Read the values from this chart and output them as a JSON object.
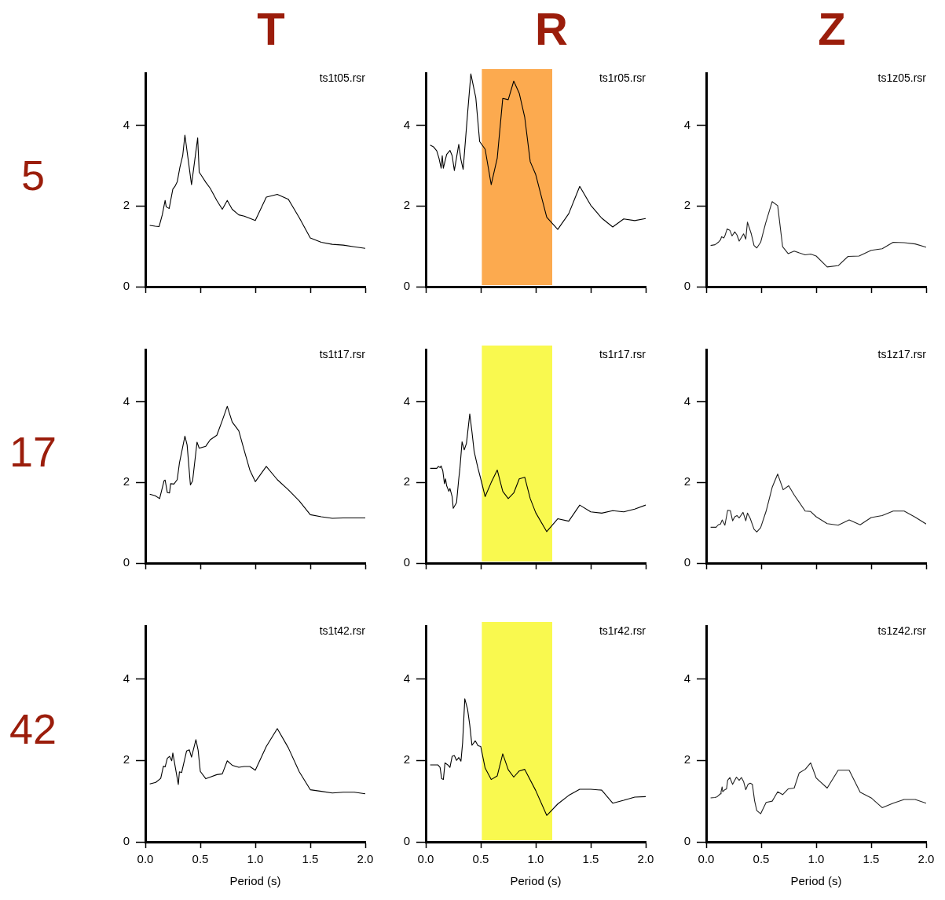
{
  "chart_data": [
    {
      "type": "line",
      "title": "T",
      "ylabel": "5",
      "annotations": [
        "ts1t05.rsr"
      ],
      "marker": "none",
      "tick_labels": "y",
      "xlim": [
        0,
        2
      ],
      "xticks": [
        {
          "value": 0,
          "label": null
        },
        {
          "value": 0.5,
          "label": null
        },
        {
          "value": 1,
          "label": null
        },
        {
          "value": 1.5,
          "label": null
        },
        {
          "value": 2,
          "label": null
        }
      ],
      "ylim": [
        0,
        5.3
      ],
      "yticks": [
        0,
        2,
        4
      ],
      "x": [
        0.04,
        0.09,
        0.125,
        0.154,
        0.18,
        0.19,
        0.217,
        0.25,
        0.27,
        0.29,
        0.315,
        0.34,
        0.36,
        0.42,
        0.43,
        0.476,
        0.49,
        0.55,
        0.59,
        0.65,
        0.7,
        0.745,
        0.79,
        0.85,
        0.9,
        1.0,
        1.1,
        1.2,
        1.3,
        1.4,
        1.5,
        1.6,
        1.7,
        1.8,
        1.9,
        2.0
      ],
      "series": [
        {
          "color": "#000000",
          "values": [
            1.52,
            1.5,
            1.49,
            1.78,
            2.14,
            1.98,
            1.94,
            2.42,
            2.49,
            2.6,
            2.97,
            3.25,
            3.76,
            2.53,
            2.73,
            3.69,
            2.84,
            2.59,
            2.44,
            2.14,
            1.92,
            2.14,
            1.92,
            1.78,
            1.75,
            1.64,
            2.22,
            2.29,
            2.17,
            1.71,
            1.21,
            1.1,
            1.05,
            1.03,
            0.99,
            0.95
          ]
        }
      ]
    },
    {
      "type": "line",
      "title": "R",
      "annotations": [
        "ts1r05.rsr"
      ],
      "marker": "none",
      "tick_labels": "y",
      "xlim": [
        0,
        2
      ],
      "xticks": [
        {
          "value": 0,
          "label": null
        },
        {
          "value": 0.5,
          "label": null
        },
        {
          "value": 1,
          "label": null
        },
        {
          "value": 1.5,
          "label": null
        },
        {
          "value": 2,
          "label": null
        }
      ],
      "ylim": [
        0,
        5.3
      ],
      "yticks": [
        0,
        2,
        4
      ],
      "bands": [
        {
          "axis": "x",
          "from": 0.51,
          "to": 1.15,
          "color": "#fcaa4f"
        }
      ],
      "x": [
        0.04,
        0.07,
        0.1,
        0.12,
        0.14,
        0.15,
        0.16,
        0.19,
        0.22,
        0.24,
        0.26,
        0.3,
        0.32,
        0.34,
        0.38,
        0.41,
        0.455,
        0.49,
        0.54,
        0.595,
        0.65,
        0.7,
        0.75,
        0.8,
        0.85,
        0.9,
        0.95,
        1.0,
        1.1,
        1.2,
        1.3,
        1.4,
        1.5,
        1.6,
        1.7,
        1.8,
        1.9,
        2.0
      ],
      "series": [
        {
          "color": "#000000",
          "values": [
            3.51,
            3.47,
            3.37,
            3.19,
            2.94,
            3.25,
            2.94,
            3.28,
            3.38,
            3.25,
            2.88,
            3.53,
            3.15,
            2.91,
            4.29,
            5.28,
            4.69,
            3.6,
            3.41,
            2.53,
            3.19,
            4.67,
            4.64,
            5.1,
            4.8,
            4.2,
            3.1,
            2.78,
            1.72,
            1.42,
            1.81,
            2.49,
            2.02,
            1.7,
            1.48,
            1.68,
            1.64,
            1.69
          ]
        }
      ]
    },
    {
      "type": "line",
      "title": "Z",
      "annotations": [
        "ts1z05.rsr"
      ],
      "marker": "none",
      "tick_labels": "y",
      "xlim": [
        0,
        2
      ],
      "xticks": [
        {
          "value": 0,
          "label": null
        },
        {
          "value": 0.5,
          "label": null
        },
        {
          "value": 1,
          "label": null
        },
        {
          "value": 1.5,
          "label": null
        },
        {
          "value": 2,
          "label": null
        }
      ],
      "ylim": [
        0,
        5.3
      ],
      "yticks": [
        0,
        2,
        4
      ],
      "x": [
        0.04,
        0.08,
        0.11,
        0.13,
        0.14,
        0.16,
        0.17,
        0.19,
        0.215,
        0.235,
        0.26,
        0.28,
        0.3,
        0.34,
        0.36,
        0.375,
        0.41,
        0.435,
        0.46,
        0.495,
        0.54,
        0.6,
        0.65,
        0.695,
        0.745,
        0.8,
        0.9,
        0.95,
        1.0,
        1.1,
        1.2,
        1.29,
        1.39,
        1.5,
        1.6,
        1.7,
        1.8,
        1.9,
        2.0
      ],
      "series": [
        {
          "color": "#222222",
          "values": [
            1.02,
            1.04,
            1.1,
            1.16,
            1.24,
            1.21,
            1.26,
            1.43,
            1.4,
            1.26,
            1.36,
            1.28,
            1.13,
            1.31,
            1.18,
            1.6,
            1.31,
            1.02,
            0.96,
            1.1,
            1.57,
            2.11,
            2.01,
            0.99,
            0.82,
            0.88,
            0.79,
            0.81,
            0.76,
            0.49,
            0.52,
            0.75,
            0.76,
            0.9,
            0.94,
            1.1,
            1.09,
            1.06,
            0.98
          ]
        }
      ]
    },
    {
      "type": "line",
      "ylabel": "17",
      "annotations": [
        "ts1t17.rsr"
      ],
      "marker": "none",
      "tick_labels": "y",
      "xlim": [
        0,
        2
      ],
      "xticks": [
        {
          "value": 0,
          "label": null
        },
        {
          "value": 0.5,
          "label": null
        },
        {
          "value": 1,
          "label": null
        },
        {
          "value": 1.5,
          "label": null
        },
        {
          "value": 2,
          "label": null
        }
      ],
      "ylim": [
        0,
        5.3
      ],
      "yticks": [
        0,
        2,
        4
      ],
      "x": [
        0.04,
        0.09,
        0.13,
        0.15,
        0.17,
        0.18,
        0.2,
        0.22,
        0.23,
        0.26,
        0.29,
        0.31,
        0.36,
        0.38,
        0.41,
        0.43,
        0.47,
        0.49,
        0.55,
        0.59,
        0.65,
        0.7,
        0.745,
        0.79,
        0.85,
        0.9,
        0.95,
        1.0,
        1.1,
        1.2,
        1.3,
        1.4,
        1.5,
        1.6,
        1.7,
        1.8,
        1.9,
        2.0
      ],
      "series": [
        {
          "color": "#000000",
          "values": [
            1.71,
            1.67,
            1.6,
            1.82,
            2.04,
            2.06,
            1.75,
            1.74,
            1.97,
            1.96,
            2.07,
            2.48,
            3.15,
            2.93,
            1.94,
            2.04,
            3.0,
            2.85,
            2.9,
            3.06,
            3.17,
            3.54,
            3.89,
            3.5,
            3.28,
            2.79,
            2.31,
            2.02,
            2.4,
            2.07,
            1.82,
            1.54,
            1.2,
            1.15,
            1.11,
            1.12,
            1.12,
            1.12
          ]
        }
      ]
    },
    {
      "type": "line",
      "annotations": [
        "ts1r17.rsr"
      ],
      "marker": "none",
      "tick_labels": "y",
      "xlim": [
        0,
        2
      ],
      "xticks": [
        {
          "value": 0,
          "label": null
        },
        {
          "value": 0.5,
          "label": null
        },
        {
          "value": 1,
          "label": null
        },
        {
          "value": 1.5,
          "label": null
        },
        {
          "value": 2,
          "label": null
        }
      ],
      "ylim": [
        0,
        5.3
      ],
      "yticks": [
        0,
        2,
        4
      ],
      "bands": [
        {
          "axis": "x",
          "from": 0.51,
          "to": 1.15,
          "color": "#f9f94f"
        }
      ],
      "x": [
        0.04,
        0.1,
        0.115,
        0.13,
        0.14,
        0.155,
        0.17,
        0.18,
        0.19,
        0.21,
        0.22,
        0.24,
        0.25,
        0.28,
        0.3,
        0.31,
        0.33,
        0.35,
        0.37,
        0.4,
        0.42,
        0.44,
        0.475,
        0.5,
        0.54,
        0.595,
        0.65,
        0.7,
        0.75,
        0.8,
        0.85,
        0.9,
        0.95,
        1.0,
        1.1,
        1.2,
        1.3,
        1.4,
        1.5,
        1.6,
        1.7,
        1.8,
        1.9,
        2.0
      ],
      "series": [
        {
          "color": "#000000",
          "values": [
            2.35,
            2.35,
            2.4,
            2.37,
            2.41,
            2.29,
            1.97,
            2.09,
            1.92,
            1.78,
            1.85,
            1.65,
            1.36,
            1.5,
            2.09,
            2.33,
            3.01,
            2.81,
            2.97,
            3.7,
            3.26,
            2.77,
            2.35,
            2.09,
            1.65,
            2.0,
            2.31,
            1.78,
            1.6,
            1.74,
            2.09,
            2.13,
            1.6,
            1.25,
            0.78,
            1.1,
            1.04,
            1.44,
            1.27,
            1.24,
            1.3,
            1.27,
            1.34,
            1.44
          ]
        }
      ]
    },
    {
      "type": "line",
      "annotations": [
        "ts1z17.rsr"
      ],
      "marker": "none",
      "tick_labels": "y",
      "xlim": [
        0,
        2
      ],
      "xticks": [
        {
          "value": 0,
          "label": null
        },
        {
          "value": 0.5,
          "label": null
        },
        {
          "value": 1,
          "label": null
        },
        {
          "value": 1.5,
          "label": null
        },
        {
          "value": 2,
          "label": null
        }
      ],
      "ylim": [
        0,
        5.3
      ],
      "yticks": [
        0,
        2,
        4
      ],
      "x": [
        0.04,
        0.09,
        0.11,
        0.13,
        0.145,
        0.17,
        0.195,
        0.22,
        0.24,
        0.26,
        0.28,
        0.3,
        0.335,
        0.36,
        0.375,
        0.4,
        0.435,
        0.46,
        0.495,
        0.545,
        0.6,
        0.65,
        0.7,
        0.75,
        0.8,
        0.9,
        0.95,
        1.0,
        1.1,
        1.2,
        1.3,
        1.4,
        1.5,
        1.6,
        1.7,
        1.8,
        1.9,
        2.0
      ],
      "series": [
        {
          "color": "#222222",
          "values": [
            0.89,
            0.89,
            0.95,
            0.97,
            1.07,
            0.94,
            1.31,
            1.3,
            1.05,
            1.15,
            1.18,
            1.12,
            1.26,
            1.05,
            1.24,
            1.11,
            0.84,
            0.77,
            0.88,
            1.29,
            1.88,
            2.21,
            1.82,
            1.92,
            1.69,
            1.29,
            1.28,
            1.15,
            0.98,
            0.94,
            1.07,
            0.95,
            1.13,
            1.18,
            1.29,
            1.29,
            1.14,
            0.97
          ]
        }
      ]
    },
    {
      "type": "line",
      "ylabel": "42",
      "xlabel": "Period (s)",
      "annotations": [
        "ts1t42.rsr"
      ],
      "marker": "none",
      "xlim": [
        0,
        2
      ],
      "xticks": [
        {
          "value": 0,
          "label": "0.0"
        },
        {
          "value": 0.5,
          "label": "0.5"
        },
        {
          "value": 1,
          "label": "1.0"
        },
        {
          "value": 1.5,
          "label": "1.5"
        },
        {
          "value": 2,
          "label": "2.0"
        }
      ],
      "ylim": [
        0,
        5.3
      ],
      "yticks": [
        0,
        2,
        4
      ],
      "x": [
        0.04,
        0.095,
        0.14,
        0.165,
        0.18,
        0.2,
        0.22,
        0.24,
        0.25,
        0.3,
        0.31,
        0.33,
        0.375,
        0.4,
        0.42,
        0.46,
        0.48,
        0.5,
        0.55,
        0.59,
        0.65,
        0.7,
        0.745,
        0.79,
        0.85,
        0.9,
        0.95,
        1.0,
        1.1,
        1.2,
        1.3,
        1.4,
        1.5,
        1.6,
        1.7,
        1.8,
        1.9,
        2.0
      ],
      "series": [
        {
          "color": "#000000",
          "values": [
            1.42,
            1.46,
            1.56,
            1.86,
            1.84,
            2.05,
            2.1,
            1.99,
            2.18,
            1.41,
            1.72,
            1.7,
            2.23,
            2.26,
            2.08,
            2.51,
            2.25,
            1.73,
            1.55,
            1.59,
            1.65,
            1.67,
            1.99,
            1.88,
            1.83,
            1.85,
            1.85,
            1.76,
            2.34,
            2.78,
            2.31,
            1.72,
            1.28,
            1.24,
            1.2,
            1.22,
            1.22,
            1.18
          ]
        }
      ]
    },
    {
      "type": "line",
      "xlabel": "Period (s)",
      "annotations": [
        "ts1r42.rsr"
      ],
      "marker": "none",
      "xlim": [
        0,
        2
      ],
      "xticks": [
        {
          "value": 0,
          "label": "0.0"
        },
        {
          "value": 0.5,
          "label": "0.5"
        },
        {
          "value": 1,
          "label": "1.0"
        },
        {
          "value": 1.5,
          "label": "1.5"
        },
        {
          "value": 2,
          "label": "2.0"
        }
      ],
      "ylim": [
        0,
        5.3
      ],
      "yticks": [
        0,
        2,
        4
      ],
      "bands": [
        {
          "axis": "x",
          "from": 0.51,
          "to": 1.15,
          "color": "#f9f94f"
        }
      ],
      "x": [
        0.04,
        0.11,
        0.13,
        0.145,
        0.16,
        0.175,
        0.2,
        0.22,
        0.24,
        0.26,
        0.28,
        0.3,
        0.32,
        0.335,
        0.355,
        0.38,
        0.4,
        0.42,
        0.45,
        0.475,
        0.5,
        0.54,
        0.595,
        0.65,
        0.7,
        0.75,
        0.8,
        0.85,
        0.9,
        1.0,
        1.1,
        1.2,
        1.3,
        1.4,
        1.5,
        1.6,
        1.7,
        1.8,
        1.9,
        2.0
      ],
      "series": [
        {
          "color": "#000000",
          "values": [
            1.89,
            1.89,
            1.83,
            1.55,
            1.53,
            1.94,
            1.89,
            1.83,
            2.1,
            2.12,
            2.0,
            2.07,
            1.98,
            2.43,
            3.51,
            3.26,
            2.87,
            2.37,
            2.48,
            2.36,
            2.34,
            1.81,
            1.53,
            1.62,
            2.16,
            1.77,
            1.59,
            1.74,
            1.78,
            1.26,
            0.65,
            0.93,
            1.14,
            1.29,
            1.29,
            1.27,
            0.95,
            1.02,
            1.1,
            1.11
          ]
        }
      ]
    },
    {
      "type": "line",
      "xlabel": "Period (s)",
      "annotations": [
        "ts1z42.rsr"
      ],
      "marker": "none",
      "xlim": [
        0,
        2
      ],
      "xticks": [
        {
          "value": 0,
          "label": "0.0"
        },
        {
          "value": 0.5,
          "label": "0.5"
        },
        {
          "value": 1,
          "label": "1.0"
        },
        {
          "value": 1.5,
          "label": "1.5"
        },
        {
          "value": 2,
          "label": "2.0"
        }
      ],
      "ylim": [
        0,
        5.3
      ],
      "yticks": [
        0,
        2,
        4
      ],
      "x": [
        0.04,
        0.08,
        0.1,
        0.13,
        0.135,
        0.145,
        0.15,
        0.165,
        0.185,
        0.195,
        0.215,
        0.24,
        0.275,
        0.3,
        0.32,
        0.34,
        0.36,
        0.38,
        0.4,
        0.42,
        0.44,
        0.46,
        0.495,
        0.545,
        0.6,
        0.65,
        0.695,
        0.745,
        0.8,
        0.845,
        0.9,
        0.95,
        1.0,
        1.1,
        1.2,
        1.3,
        1.4,
        1.5,
        1.6,
        1.7,
        1.8,
        1.9,
        2.0
      ],
      "series": [
        {
          "color": "#222222",
          "values": [
            1.08,
            1.09,
            1.11,
            1.18,
            1.23,
            1.35,
            1.23,
            1.27,
            1.3,
            1.51,
            1.58,
            1.41,
            1.59,
            1.51,
            1.58,
            1.48,
            1.28,
            1.41,
            1.44,
            1.41,
            1.01,
            0.77,
            0.69,
            0.97,
            1.0,
            1.23,
            1.16,
            1.3,
            1.32,
            1.69,
            1.78,
            1.94,
            1.57,
            1.32,
            1.76,
            1.76,
            1.22,
            1.08,
            0.84,
            0.95,
            1.04,
            1.04,
            0.95
          ]
        }
      ]
    }
  ]
}
